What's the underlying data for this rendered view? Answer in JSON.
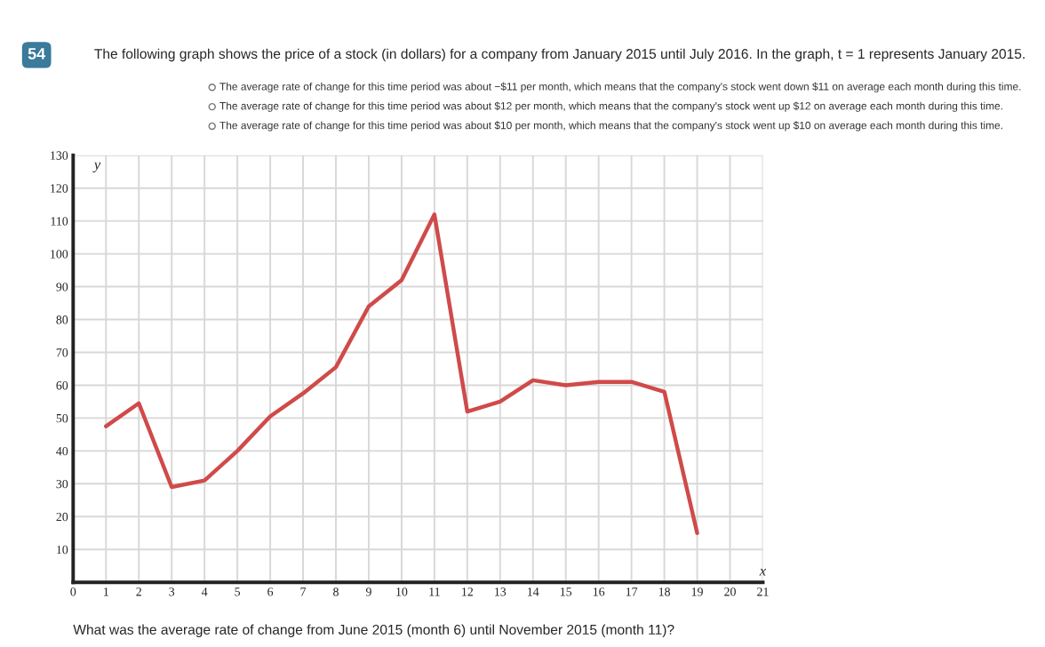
{
  "chart_data": {
    "type": "line",
    "title": "The following graph shows the price of a stock (in dollars) for a company from January 2015 until July 2016. In the graph, t = 1 represents January 2015.",
    "xlabel": "x",
    "ylabel": "y",
    "annotations": [
      "54",
      "The average rate of change for this time period was about −$11 per month, which means that the company's stock went down $11 on average each month during this time.",
      "The average rate of change for this time period was about $12 per month, which means that the company's stock went up $12 on average each month during this time.",
      "The average rate of change for this time period was about $10 per month, which means that the company's stock went up $10 on average each month during this time.",
      "What was the average rate of change from June 2015 (month 6) until November 2015 (month 11)?"
    ],
    "x": [
      1,
      2,
      3,
      4,
      5,
      6,
      7,
      8,
      9,
      10,
      11,
      12,
      13,
      14,
      15,
      16,
      17,
      18,
      19
    ],
    "series": [
      {
        "color": "#d04a4a",
        "values": [
          47.5,
          54.5,
          29,
          31,
          40,
          50.5,
          57.5,
          65.5,
          84,
          92,
          112,
          52,
          55,
          61.5,
          60,
          61,
          61,
          58,
          15
        ]
      }
    ],
    "xlim": [
      0,
      21
    ],
    "ylim": [
      0,
      130
    ],
    "xticks": [
      0,
      1,
      2,
      3,
      4,
      5,
      6,
      7,
      8,
      9,
      10,
      11,
      12,
      13,
      14,
      15,
      16,
      17,
      18,
      19,
      20,
      21
    ],
    "yticks": [
      10,
      20,
      30,
      40,
      50,
      60,
      70,
      80,
      90,
      100,
      110,
      120,
      130
    ],
    "grid": true,
    "marker": "none",
    "line_style": "solid"
  }
}
